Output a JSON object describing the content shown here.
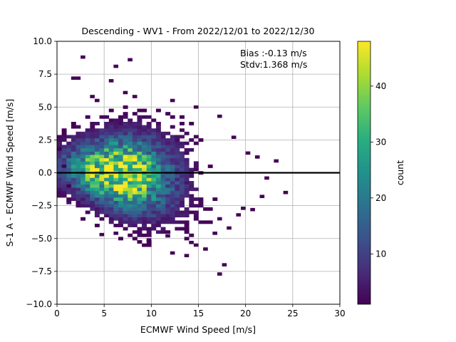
{
  "chart_data": {
    "type": "heatmap",
    "title": "Descending - WV1 - From 2022/12/01 to 2022/12/30",
    "xlabel": "ECMWF Wind Speed [m/s]",
    "ylabel": "S-1 A - ECMWF Wind Speed [m/s]",
    "xlim": [
      0,
      30
    ],
    "ylim": [
      -10,
      10
    ],
    "x_ticks": [
      "0",
      "5",
      "10",
      "15",
      "20",
      "25",
      "30"
    ],
    "y_ticks": [
      "−10.0",
      "−7.5",
      "−5.0",
      "−2.5",
      "0.0",
      "2.5",
      "5.0",
      "7.5",
      "10.0"
    ],
    "grid": true,
    "reference_line_y": 0,
    "annotation": [
      "Bias :-0.13 m/s",
      "Stdv:1.368 m/s"
    ],
    "colorbar": {
      "label": "count",
      "colormap": "viridis",
      "range": [
        1,
        48
      ],
      "ticks": [
        "10",
        "20",
        "30",
        "40"
      ]
    },
    "bin_size": {
      "x": 0.5,
      "y": 0.25
    },
    "density_model": {
      "peak_count": 48,
      "center_x": 6.5,
      "center_y": 0.0,
      "sigma_x": 3.6,
      "sigma_y": 1.5
    },
    "outlier_points": [
      [
        2.75,
        8.8
      ],
      [
        6.25,
        8.1
      ],
      [
        7.75,
        8.6
      ],
      [
        1.75,
        7.2
      ],
      [
        2.25,
        7.2
      ],
      [
        5.75,
        7.0
      ],
      [
        7.25,
        6.1
      ],
      [
        3.75,
        5.8
      ],
      [
        4.25,
        5.5
      ],
      [
        8.25,
        5.8
      ],
      [
        12.25,
        5.5
      ],
      [
        14.75,
        5.0
      ],
      [
        17.25,
        4.3
      ],
      [
        18.75,
        2.7
      ],
      [
        20.25,
        1.5
      ],
      [
        21.25,
        1.2
      ],
      [
        23.25,
        0.9
      ],
      [
        22.25,
        -0.4
      ],
      [
        24.25,
        -1.5
      ],
      [
        21.75,
        -1.8
      ],
      [
        19.75,
        -2.7
      ],
      [
        20.75,
        -2.8
      ],
      [
        19.25,
        -3.2
      ],
      [
        17.25,
        -3.5
      ],
      [
        18.25,
        -4.2
      ],
      [
        16.75,
        -4.6
      ],
      [
        14.75,
        -5.5
      ],
      [
        15.75,
        -5.8
      ],
      [
        14.25,
        -5.3
      ],
      [
        12.25,
        -6.1
      ],
      [
        13.75,
        -6.3
      ],
      [
        11.75,
        -4.8
      ],
      [
        9.75,
        -5.1
      ],
      [
        4.75,
        -4.7
      ],
      [
        6.25,
        -4.6
      ],
      [
        17.75,
        -7.0
      ],
      [
        17.25,
        -7.7
      ],
      [
        1.25,
        -1.0
      ],
      [
        0.75,
        0.5
      ],
      [
        0.25,
        1.8
      ]
    ]
  }
}
